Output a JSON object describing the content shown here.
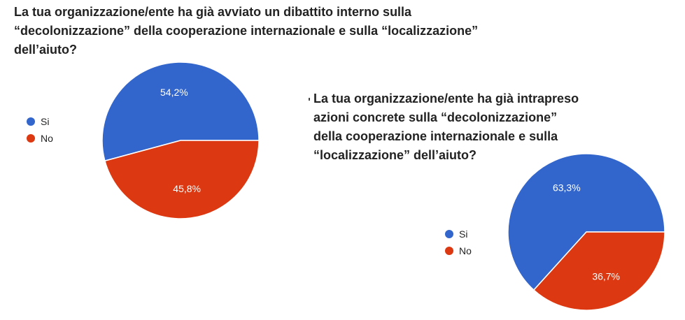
{
  "chart_data": [
    {
      "type": "pie",
      "title_lines": [
        "La tua organizzazione/ente ha già avviato un dibattito interno sulla",
        "“decolonizzazione” della cooperazione internazionale e sulla “localizzazione”",
        "dell’aiuto?"
      ],
      "categories": [
        "Si",
        "No"
      ],
      "values": [
        54.2,
        45.8
      ],
      "labels": [
        "54,2%",
        "45,8%"
      ],
      "colors": [
        "#3366cc",
        "#dc3912"
      ],
      "legend_position": "left"
    },
    {
      "type": "pie",
      "title_lines": [
        "La tua organizzazione/ente ha già intrapreso",
        "azioni concrete sulla “decolonizzazione”",
        "della cooperazione internazionale e sulla",
        "“localizzazione” dell’aiuto?"
      ],
      "categories": [
        "Si",
        "No"
      ],
      "values": [
        63.3,
        36.7
      ],
      "labels": [
        "63,3%",
        "36,7%"
      ],
      "colors": [
        "#3366cc",
        "#dc3912"
      ],
      "legend_position": "left"
    }
  ]
}
